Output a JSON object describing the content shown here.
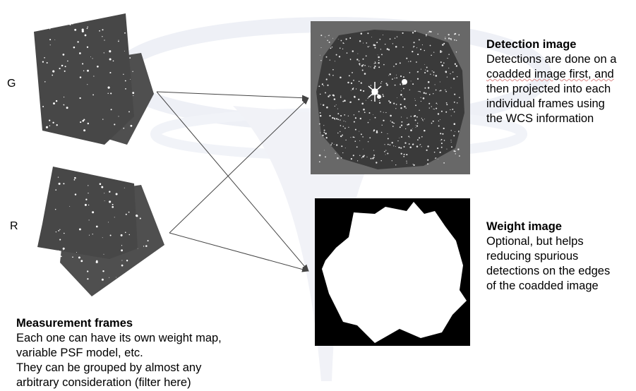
{
  "labels": {
    "g": "G",
    "r": "R"
  },
  "detection": {
    "title": "Detection image",
    "lines": [
      "Detections are done on a",
      "coadded image first, and",
      "then projected into each",
      "individual frames using",
      "the WCS information"
    ]
  },
  "weight": {
    "title": "Weight image",
    "lines": [
      "Optional, but helps",
      "reducing spurious",
      "detections on the edges",
      "of the coadded image"
    ]
  },
  "measurement": {
    "title": "Measurement frames",
    "lines": [
      "Each one can have its own weight map,",
      "variable PSF model, etc.",
      "They can be grouped by almost any",
      "arbitrary consideration (filter here)"
    ]
  },
  "colors": {
    "frame": "#4a4a4a",
    "detection_bg": "#686868",
    "weight_bg": "#000000",
    "weight_fg": "#ffffff",
    "arrow": "#444444"
  }
}
